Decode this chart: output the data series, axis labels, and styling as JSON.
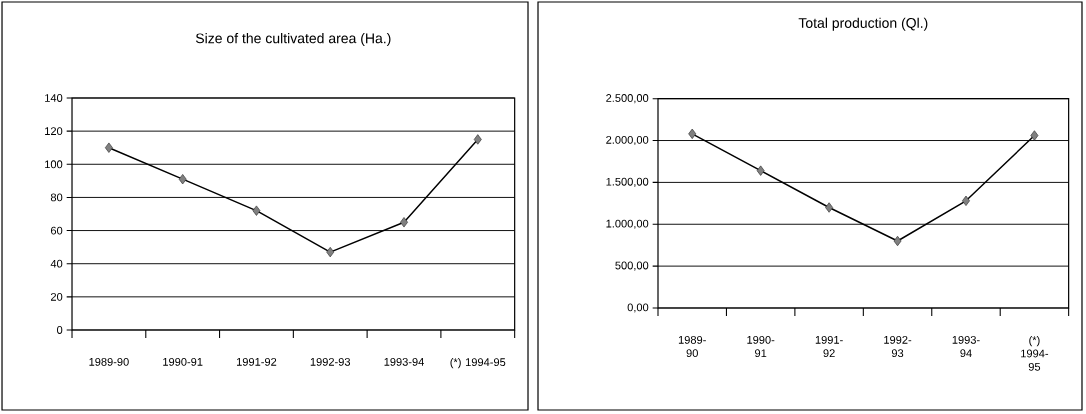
{
  "chart_data": [
    {
      "type": "line",
      "title": "Size of the cultivated area (Ha.)",
      "categories": [
        "1989-90",
        "1990-91",
        "1991-92",
        "1992-93",
        "1993-94",
        "(*) 1994-95"
      ],
      "values": [
        110,
        91,
        72,
        47,
        65,
        115
      ],
      "color": "#000000",
      "marker": "diamond",
      "grid": "y",
      "ylim": [
        0,
        140
      ],
      "yticks": [
        0,
        20,
        40,
        60,
        80,
        100,
        120,
        140
      ]
    },
    {
      "type": "line",
      "title": "Total production (Ql.)",
      "categories": [
        "1989-90",
        "1990-91",
        "1991-92",
        "1992-93",
        "1993-94",
        "(*) 1994-95"
      ],
      "values": [
        2080,
        1640,
        1200,
        800,
        1280,
        2060
      ],
      "color": "#000000",
      "marker": "diamond",
      "grid": "y",
      "ylim": [
        0,
        2500
      ],
      "yticks": [
        {
          "value": 0,
          "label": "0,00"
        },
        {
          "value": 500,
          "label": "500,00"
        },
        {
          "value": 1000,
          "label": "1.000,00"
        },
        {
          "value": 1500,
          "label": "1.500,00"
        },
        {
          "value": 2000,
          "label": "2.000,00"
        },
        {
          "value": 2500,
          "label": "2.500,00"
        }
      ]
    }
  ]
}
